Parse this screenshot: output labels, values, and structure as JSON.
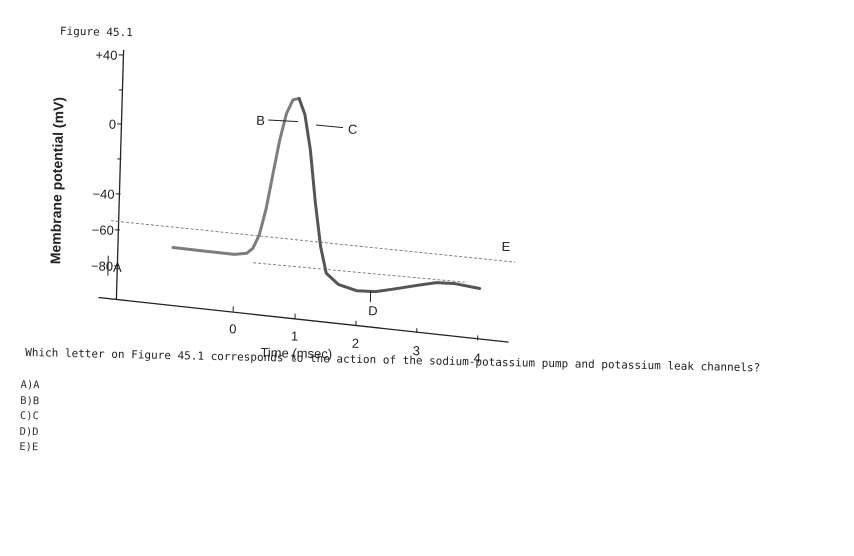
{
  "figure_label": "Figure 45.1",
  "question": "Which letter on Figure 45.1 corresponds to the action of the sodium-potassium pump and potassium leak channels?",
  "options": [
    "A)A",
    "B)B",
    "C)C",
    "D)D",
    "E)E"
  ],
  "chart_data": {
    "type": "line",
    "title": "",
    "xlabel": "Time (msec)",
    "ylabel": "Membrane potential (mV)",
    "x_ticks": [
      "0",
      "1",
      "2",
      "3",
      "4"
    ],
    "y_ticks": [
      "+40",
      "0",
      "−40",
      "−60",
      "−80"
    ],
    "xlim": [
      -1.0,
      4.0
    ],
    "ylim": [
      -100,
      40
    ],
    "series": [
      {
        "x": [
          -1.0,
          -0.5,
          0.0,
          0.2,
          0.3,
          0.4,
          0.5,
          0.6,
          0.7,
          0.8,
          0.9,
          1.0,
          1.1,
          1.2,
          1.3,
          1.4,
          1.5,
          1.7,
          2.0,
          2.3,
          2.6,
          3.0,
          3.3,
          3.6,
          4.0
        ],
        "y": [
          -70,
          -71,
          -72,
          -71,
          -68,
          -60,
          -45,
          -25,
          -5,
          10,
          18,
          19,
          10,
          -10,
          -40,
          -65,
          -80,
          -86,
          -89,
          -89,
          -87,
          -84,
          -82,
          -82,
          -84
        ]
      }
    ],
    "threshold_lines": [
      -55,
      -75
    ],
    "point_labels": [
      {
        "text": "A"
      },
      {
        "text": "B"
      },
      {
        "text": "C"
      },
      {
        "text": "D"
      },
      {
        "text": "E"
      }
    ],
    "colors": {
      "rising": "#7d7d7d",
      "falling": "#555555",
      "text": "#222222"
    }
  }
}
